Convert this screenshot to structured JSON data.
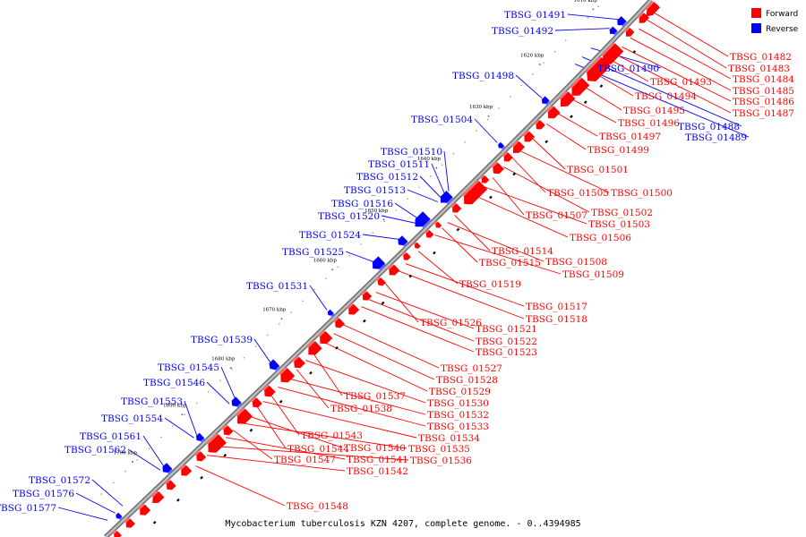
{
  "caption": "Mycobacterium tuberculosis KZN 4207, complete genome. - 0..4394985",
  "legend": [
    {
      "label": "Forward",
      "color": "#ff0000"
    },
    {
      "label": "Reverse",
      "color": "#0000ff"
    }
  ],
  "colors": {
    "forward": "#ff0000",
    "forward_light": "#ff6b6b",
    "reverse": "#0000ff",
    "reverse_light": "#6b6bff",
    "backbone": "#888888"
  },
  "ticks": [
    "1610 kbp",
    "1620 kbp",
    "1630 kbp",
    "1640 kbp",
    "1650 kbp",
    "1660 kbp",
    "1670 kbp",
    "1680 kbp",
    "1690 kbp",
    "1700 kbp"
  ],
  "forward_labels": [
    "TBSG_01482",
    "TBSG_01483",
    "TBSG_01484",
    "TBSG_01485",
    "TBSG_01486",
    "TBSG_01487",
    "TBSG_01493",
    "TBSG_01494",
    "TBSG_01495",
    "TBSG_01496",
    "TBSG_01497",
    "TBSG_01499",
    "TBSG_01501",
    "TBSG_01500",
    "TBSG_01505",
    "TBSG_01502",
    "TBSG_01507",
    "TBSG_01503",
    "TBSG_01506",
    "TBSG_01514",
    "TBSG_01508",
    "TBSG_01515",
    "TBSG_01509",
    "TBSG_01519",
    "TBSG_01517",
    "TBSG_01518",
    "TBSG_01526",
    "TBSG_01521",
    "TBSG_01522",
    "TBSG_01523",
    "TBSG_01527",
    "TBSG_01528",
    "TBSG_01529",
    "TBSG_01537",
    "TBSG_01530",
    "TBSG_01538",
    "TBSG_01532",
    "TBSG_01533",
    "TBSG_01543",
    "TBSG_01534",
    "TBSG_01544",
    "TBSG_01540",
    "TBSG_01535",
    "TBSG_01547",
    "TBSG_01541",
    "TBSG_01536",
    "TBSG_01542",
    "TBSG_01548"
  ],
  "reverse_labels": [
    "TBSG_01491",
    "TBSG_01492",
    "TBSG_01490",
    "TBSG_01498",
    "TBSG_01488",
    "TBSG_01489",
    "TBSG_01504",
    "TBSG_01510",
    "TBSG_01511",
    "TBSG_01512",
    "TBSG_01513",
    "TBSG_01516",
    "TBSG_01520",
    "TBSG_01524",
    "TBSG_01525",
    "TBSG_01531",
    "TBSG_01539",
    "TBSG_01545",
    "TBSG_01546",
    "TBSG_01553",
    "TBSG_01554",
    "TBSG_01561",
    "TBSG_01562",
    "TBSG_01572",
    "TBSG_01576",
    "TBSG_01577"
  ]
}
